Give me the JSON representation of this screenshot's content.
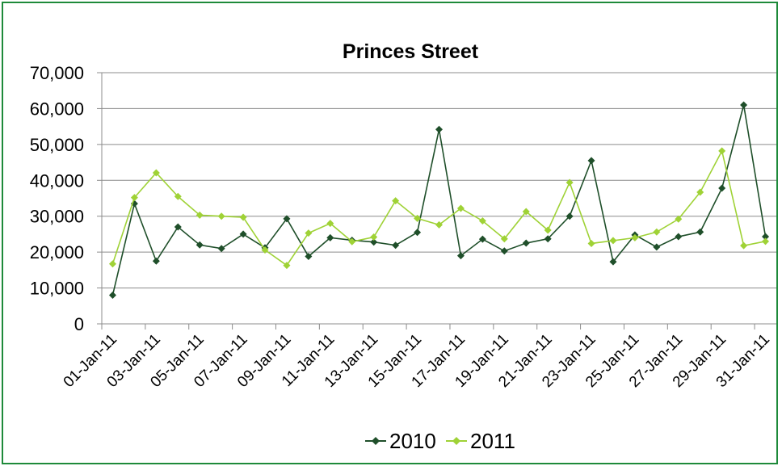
{
  "chart_data": {
    "type": "line",
    "title": "Princes Street",
    "xlabel": "",
    "ylabel": "",
    "ylim": [
      0,
      70000
    ],
    "yticks": [
      0,
      10000,
      20000,
      30000,
      40000,
      50000,
      60000,
      70000
    ],
    "ytick_labels": [
      "0",
      "10,000",
      "20,000",
      "30,000",
      "40,000",
      "50,000",
      "60,000",
      "70,000"
    ],
    "x": [
      "01-Jan-11",
      "02-Jan-11",
      "03-Jan-11",
      "04-Jan-11",
      "05-Jan-11",
      "06-Jan-11",
      "07-Jan-11",
      "08-Jan-11",
      "09-Jan-11",
      "10-Jan-11",
      "11-Jan-11",
      "12-Jan-11",
      "13-Jan-11",
      "14-Jan-11",
      "15-Jan-11",
      "16-Jan-11",
      "17-Jan-11",
      "18-Jan-11",
      "19-Jan-11",
      "20-Jan-11",
      "21-Jan-11",
      "22-Jan-11",
      "23-Jan-11",
      "24-Jan-11",
      "25-Jan-11",
      "26-Jan-11",
      "27-Jan-11",
      "28-Jan-11",
      "29-Jan-11",
      "30-Jan-11",
      "31-Jan-11"
    ],
    "xtick_labels": [
      "01-Jan-11",
      "03-Jan-11",
      "05-Jan-11",
      "07-Jan-11",
      "09-Jan-11",
      "11-Jan-11",
      "13-Jan-11",
      "15-Jan-11",
      "17-Jan-11",
      "19-Jan-11",
      "21-Jan-11",
      "23-Jan-11",
      "25-Jan-11",
      "27-Jan-11",
      "29-Jan-11",
      "31-Jan-11"
    ],
    "grid": true,
    "legend_position": "bottom",
    "series": [
      {
        "name": "2010",
        "color": "#1f4f2a",
        "values": [
          8000,
          33500,
          17500,
          27000,
          22000,
          21000,
          25000,
          21200,
          29300,
          18800,
          24000,
          23300,
          22800,
          21900,
          25500,
          54200,
          19000,
          23600,
          20300,
          22500,
          23700,
          30000,
          45500,
          17300,
          24800,
          21400,
          24300,
          25600,
          37800,
          61000,
          24300
        ]
      },
      {
        "name": "2011",
        "color": "#9fd236",
        "values": [
          16700,
          35200,
          42100,
          35500,
          30300,
          30000,
          29700,
          20600,
          16300,
          25300,
          28000,
          22900,
          24200,
          34300,
          29400,
          27600,
          32200,
          28700,
          23700,
          31300,
          26100,
          39400,
          22400,
          23200,
          24000,
          25600,
          29200,
          36700,
          48200,
          21800,
          23000
        ]
      }
    ]
  }
}
